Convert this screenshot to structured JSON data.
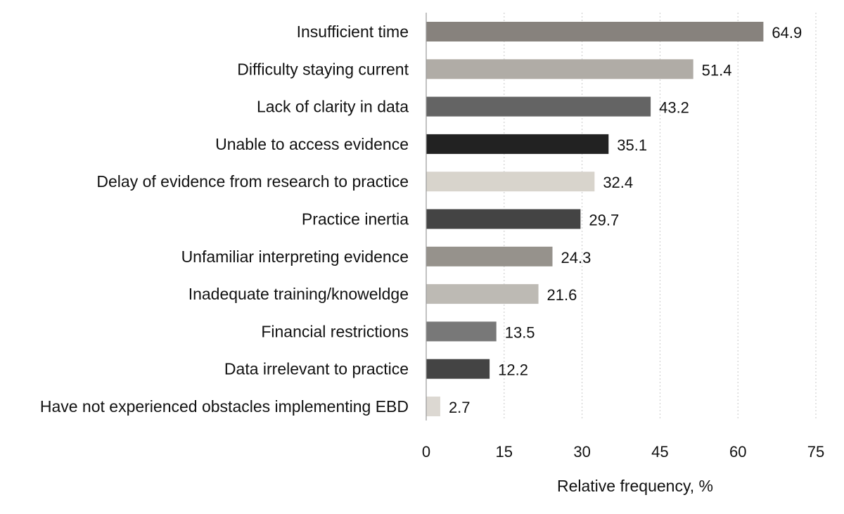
{
  "chart_data": {
    "type": "bar",
    "orientation": "horizontal",
    "title": "",
    "xlabel": "Relative frequency, %",
    "ylabel": "",
    "xlim": [
      0,
      75
    ],
    "xticks": [
      "0",
      "15",
      "30",
      "45",
      "60",
      "75"
    ],
    "grid": "vertical dotted",
    "legend": "none",
    "categories": [
      "Insufficient time",
      "Difficulty staying current",
      "Lack of clarity in data",
      "Unable to access evidence",
      "Delay of evidence from research to practice",
      "Practice inertia",
      "Unfamiliar interpreting evidence",
      "Inadequate training/knoweldge",
      "Financial restrictions",
      "Data irrelevant to practice",
      "Have not experienced obstacles implementing EBD"
    ],
    "values": [
      64.9,
      51.4,
      43.2,
      35.1,
      32.4,
      29.7,
      24.3,
      21.6,
      13.5,
      12.2,
      2.7
    ],
    "value_labels": [
      "64.9",
      "51.4",
      "43.2",
      "35.1",
      "32.4",
      "29.7",
      "24.3",
      "21.6",
      "13.5",
      "12.2",
      "2.7"
    ],
    "colors": [
      "#87827d",
      "#b0aca6",
      "#646464",
      "#222222",
      "#d8d4cc",
      "#444444",
      "#96928c",
      "#bdbab4",
      "#787878",
      "#444444",
      "#dcd8d2"
    ]
  }
}
